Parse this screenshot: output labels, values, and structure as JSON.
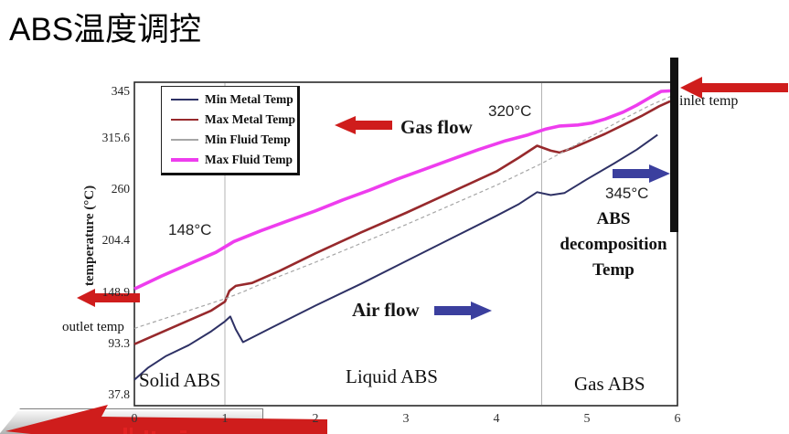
{
  "page": {
    "title": "ABS温度调控"
  },
  "chart_data": {
    "type": "line",
    "title": "",
    "xlabel": "",
    "ylabel": "temperature (°C)",
    "xlim": [
      0,
      6
    ],
    "ylim": [
      37.8,
      345
    ],
    "x_ticks": [
      0,
      1,
      2,
      3,
      4,
      5,
      6
    ],
    "y_ticks": [
      37.8,
      93.3,
      148.9,
      204.4,
      260,
      315.6,
      345
    ],
    "grid": "region-boundaries-only",
    "legend_position": "top-left",
    "region_boundaries_x": [
      1,
      4.5
    ],
    "series": [
      {
        "name": "Min Metal Temp",
        "color": "#2e3165",
        "width": 2,
        "dash": "",
        "points": [
          [
            0,
            53
          ],
          [
            0.15,
            65
          ],
          [
            0.35,
            77
          ],
          [
            0.6,
            88
          ],
          [
            0.85,
            102
          ],
          [
            1.0,
            112
          ],
          [
            1.06,
            117
          ],
          [
            1.12,
            104
          ],
          [
            1.2,
            91
          ],
          [
            1.5,
            105
          ],
          [
            2,
            128
          ],
          [
            2.5,
            150
          ],
          [
            3,
            173
          ],
          [
            3.5,
            196
          ],
          [
            4,
            219
          ],
          [
            4.25,
            231
          ],
          [
            4.45,
            243
          ],
          [
            4.6,
            240
          ],
          [
            4.75,
            242
          ],
          [
            5,
            256
          ],
          [
            5.3,
            272
          ],
          [
            5.55,
            286
          ],
          [
            5.78,
            301
          ]
        ]
      },
      {
        "name": "Max Metal Temp",
        "color": "#97292c",
        "width": 2.6,
        "dash": "",
        "points": [
          [
            0,
            89
          ],
          [
            0.3,
            101
          ],
          [
            0.6,
            113
          ],
          [
            0.85,
            123
          ],
          [
            1.0,
            132
          ],
          [
            1.05,
            143
          ],
          [
            1.12,
            148
          ],
          [
            1.3,
            151
          ],
          [
            1.6,
            163
          ],
          [
            2,
            181
          ],
          [
            2.5,
            202
          ],
          [
            3,
            222
          ],
          [
            3.5,
            243
          ],
          [
            4,
            264
          ],
          [
            4.25,
            278
          ],
          [
            4.45,
            290
          ],
          [
            4.6,
            285
          ],
          [
            4.7,
            283
          ],
          [
            4.85,
            288
          ],
          [
            5,
            294
          ],
          [
            5.2,
            302
          ],
          [
            5.4,
            311
          ],
          [
            5.6,
            320
          ],
          [
            5.8,
            330
          ],
          [
            5.92,
            335
          ]
        ]
      },
      {
        "name": "Min Fluid Temp",
        "color": "#a6a6a6",
        "width": 1.2,
        "dash": "4 3",
        "points": [
          [
            0,
            105
          ],
          [
            0.5,
            120
          ],
          [
            1,
            135
          ],
          [
            1.2,
            142
          ],
          [
            1.5,
            154
          ],
          [
            2,
            172
          ],
          [
            2.5,
            191
          ],
          [
            3,
            210
          ],
          [
            3.5,
            230
          ],
          [
            4,
            250
          ],
          [
            4.5,
            272
          ],
          [
            4.8,
            287
          ],
          [
            5.1,
            302
          ],
          [
            5.4,
            317
          ],
          [
            5.7,
            331
          ],
          [
            5.95,
            341
          ]
        ]
      },
      {
        "name": "Max Fluid Temp",
        "color": "#ee3dee",
        "width": 3.6,
        "dash": "",
        "points": [
          [
            0,
            145
          ],
          [
            0.3,
            158
          ],
          [
            0.6,
            170
          ],
          [
            0.9,
            182
          ],
          [
            1.1,
            193
          ],
          [
            1.4,
            204
          ],
          [
            1.7,
            214
          ],
          [
            2,
            224
          ],
          [
            2.3,
            235
          ],
          [
            2.6,
            245
          ],
          [
            2.9,
            256
          ],
          [
            3.2,
            266
          ],
          [
            3.5,
            276
          ],
          [
            3.8,
            286
          ],
          [
            4.1,
            295
          ],
          [
            4.35,
            301
          ],
          [
            4.55,
            307
          ],
          [
            4.7,
            310
          ],
          [
            4.9,
            311
          ],
          [
            5.05,
            313
          ],
          [
            5.2,
            317
          ],
          [
            5.4,
            324
          ],
          [
            5.55,
            331
          ],
          [
            5.7,
            339
          ],
          [
            5.82,
            345
          ],
          [
            6,
            346
          ]
        ]
      }
    ]
  },
  "annotations": {
    "gas_flow": "Gas flow",
    "air_flow": "Air flow",
    "temp_148": "148°C",
    "temp_320": "320°C",
    "temp_345": "345°C",
    "decomposition": {
      "line1": "ABS",
      "line2": "decomposition",
      "line3": "Temp"
    },
    "inlet": "inlet temp",
    "outlet": "outlet temp",
    "region_solid": "Solid ABS",
    "region_liquid": "Liquid ABS",
    "region_gas": "Gas ABS"
  },
  "colors": {
    "accent_red": "#cf1d1c",
    "accent_blue": "#3b3f9e",
    "frame": "#2a2a2a",
    "gridline": "#b3b3b3",
    "bar_black": "#111111"
  }
}
